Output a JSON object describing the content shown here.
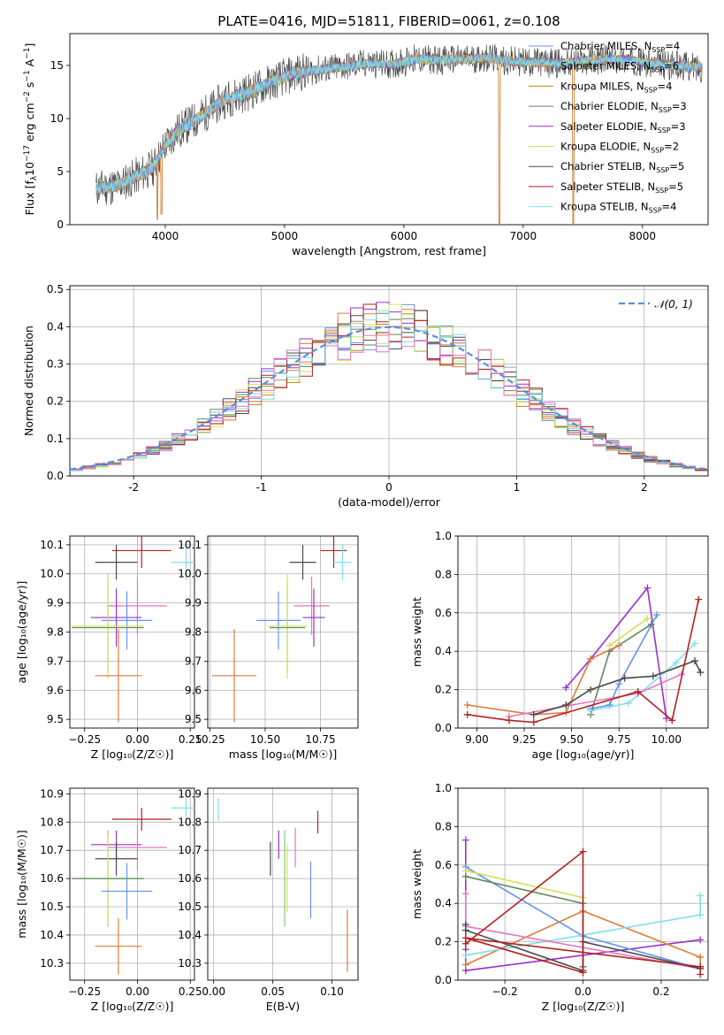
{
  "figure": {
    "title": "PLATE=0416, MJD=51811, FIBERID=0061, z=0.108",
    "colors": {
      "chabrier_miles": "#6495ed",
      "salpeter_miles": "#e07b39",
      "kroupa_miles": "#b8860b",
      "chabrier_elodie": "#5f8a5f",
      "salpeter_elodie": "#9932cc",
      "kroupa_elodie": "#d4e157",
      "chabrier_stelib": "#4a4a4a",
      "salpeter_stelib": "#b22222",
      "kroupa_stelib": "#80deea",
      "pink": "#e377c2",
      "green": "#7fc97f",
      "normal_dash": "#5b8fd6"
    }
  },
  "chart_data": [
    {
      "id": "spectrum",
      "type": "line",
      "xlabel": "wavelength [Angstrom, rest frame]",
      "ylabel": "Flux [f",
      "ylabel_parts": [
        "Flux [f",
        "λ",
        "10",
        "−17",
        " erg cm",
        "−2",
        " s",
        "−1",
        " A",
        "−1",
        "]"
      ],
      "xlim": [
        3200,
        8550
      ],
      "ylim": [
        0,
        18
      ],
      "xticks": [
        4000,
        5000,
        6000,
        7000,
        8000
      ],
      "yticks": [
        0,
        5,
        10,
        15
      ],
      "legend": [
        {
          "name": "Chabrier MILES, N",
          "sub": "SSP",
          "tail": "=4",
          "color_key": "chabrier_miles"
        },
        {
          "name": "Salpeter MILES, N",
          "sub": "SSP",
          "tail": "=6",
          "color_key": "salpeter_miles"
        },
        {
          "name": "Kroupa MILES, N",
          "sub": "SSP",
          "tail": "=4",
          "color_key": "kroupa_miles"
        },
        {
          "name": "Chabrier ELODIE, N",
          "sub": "SSP",
          "tail": "=3",
          "color_key": "chabrier_elodie"
        },
        {
          "name": "Salpeter ELODIE, N",
          "sub": "SSP",
          "tail": "=3",
          "color_key": "salpeter_elodie"
        },
        {
          "name": "Kroupa ELODIE, N",
          "sub": "SSP",
          "tail": "=2",
          "color_key": "kroupa_elodie"
        },
        {
          "name": "Chabrier STELIB, N",
          "sub": "SSP",
          "tail": "=5",
          "color_key": "chabrier_stelib"
        },
        {
          "name": "Salpeter STELIB, N",
          "sub": "SSP",
          "tail": "=5",
          "color_key": "salpeter_stelib"
        },
        {
          "name": "Kroupa STELIB, N",
          "sub": "SSP",
          "tail": "=4",
          "color_key": "kroupa_stelib"
        }
      ],
      "legend_position": "upper-right",
      "continuum": {
        "x": [
          3420,
          3600,
          3800,
          3900,
          4000,
          4100,
          4300,
          4500,
          4700,
          4900,
          5100,
          5300,
          5500,
          5700,
          5900,
          6100,
          6300,
          6500,
          6700,
          6900,
          7100,
          7300,
          7500,
          7700,
          7900,
          8100,
          8300,
          8500
        ],
        "y": [
          3.4,
          3.7,
          4.8,
          5.4,
          7.5,
          8.8,
          10.2,
          11.8,
          12.5,
          13.5,
          14.3,
          14.6,
          14.9,
          15.2,
          15.1,
          15.6,
          15.5,
          15.6,
          15.7,
          15.4,
          15.3,
          15.2,
          15.4,
          15.6,
          15.5,
          15.1,
          15.0,
          14.8
        ]
      },
      "dips": [
        {
          "x": 3933,
          "y": 0.5
        },
        {
          "x": 3968,
          "y": 1.0
        },
        {
          "x": 6800,
          "y": 0.0
        },
        {
          "x": 7420,
          "y": 0.0
        }
      ]
    },
    {
      "id": "residuals",
      "type": "step-histogram",
      "xlabel": "(data-model)/error",
      "ylabel": "Normed distribution",
      "xlim": [
        -2.5,
        2.5
      ],
      "ylim": [
        0,
        0.51
      ],
      "xticks": [
        -2,
        -1,
        0,
        1,
        2
      ],
      "yticks": [
        0.0,
        0.1,
        0.2,
        0.3,
        0.4,
        0.5
      ],
      "bin_width": 0.1,
      "legend": [
        {
          "name": "𝒩(0, 1)",
          "color_key": "normal_dash",
          "style": "dashed"
        }
      ],
      "legend_position": "upper-right",
      "normal": {
        "mu": 0,
        "sigma": 1
      }
    },
    {
      "id": "age_vs_Z",
      "type": "errorbar",
      "xlabel": "Z [log₁₀(Z/Z☉)]",
      "ylabel": "age  [log₁₀(age/yr)]",
      "xlim": [
        -0.32,
        0.27
      ],
      "ylim": [
        9.47,
        10.13
      ],
      "xticks": [
        -0.25,
        0.0,
        0.25
      ],
      "xtick_labels": [
        "−0.25",
        "0.00",
        "0.25"
      ],
      "yticks": [
        9.5,
        9.6,
        9.7,
        9.8,
        9.9,
        10.0,
        10.1
      ],
      "points": [
        {
          "x": 0.02,
          "xerr": 0.14,
          "y": 10.08,
          "yerr": 0.06,
          "c": "salpeter_stelib"
        },
        {
          "x": 0.23,
          "xerr": 0.07,
          "y": 10.04,
          "yerr": 0.06,
          "c": "kroupa_stelib"
        },
        {
          "x": -0.1,
          "xerr": 0.1,
          "y": 10.04,
          "yerr": 0.06,
          "c": "chabrier_stelib"
        },
        {
          "x": 0.0,
          "xerr": 0.14,
          "y": 9.89,
          "yerr": 0.1,
          "c": "pink"
        },
        {
          "x": -0.1,
          "xerr": 0.12,
          "y": 9.85,
          "yerr": 0.1,
          "c": "salpeter_elodie"
        },
        {
          "x": -0.05,
          "xerr": 0.12,
          "y": 9.84,
          "yerr": 0.1,
          "c": "chabrier_miles"
        },
        {
          "x": -0.14,
          "xerr": 0.17,
          "y": 9.82,
          "yerr": 0.16,
          "c": "green"
        },
        {
          "x": -0.14,
          "xerr": 0.17,
          "y": 9.82,
          "yerr": 0.18,
          "c": "kroupa_elodie"
        },
        {
          "x": -0.14,
          "xerr": 0.17,
          "y": 9.815,
          "yerr": 0.0,
          "c": "chabrier_elodie"
        },
        {
          "x": -0.09,
          "xerr": 0.11,
          "y": 9.65,
          "yerr": 0.16,
          "c": "salpeter_miles"
        }
      ]
    },
    {
      "id": "age_vs_mass",
      "type": "errorbar",
      "xlabel": "mass [log₁₀(M/M☉)]",
      "ylabel": "",
      "xlim": [
        10.24,
        10.92
      ],
      "ylim": [
        9.47,
        10.13
      ],
      "xticks": [
        10.25,
        10.5,
        10.75
      ],
      "xtick_labels": [
        "10.25",
        "10.50",
        "10.75"
      ],
      "yticks": [
        9.5,
        9.6,
        9.7,
        9.8,
        9.9,
        10.0,
        10.1
      ],
      "points": [
        {
          "x": 10.81,
          "xerr": 0.06,
          "y": 10.08,
          "yerr": 0.06,
          "c": "salpeter_stelib"
        },
        {
          "x": 10.85,
          "xerr": 0.04,
          "y": 10.04,
          "yerr": 0.06,
          "c": "kroupa_stelib"
        },
        {
          "x": 10.67,
          "xerr": 0.06,
          "y": 10.04,
          "yerr": 0.06,
          "c": "chabrier_stelib"
        },
        {
          "x": 10.71,
          "xerr": 0.08,
          "y": 9.89,
          "yerr": 0.1,
          "c": "pink"
        },
        {
          "x": 10.72,
          "xerr": 0.05,
          "y": 9.85,
          "yerr": 0.1,
          "c": "salpeter_elodie"
        },
        {
          "x": 10.56,
          "xerr": 0.1,
          "y": 9.84,
          "yerr": 0.1,
          "c": "chabrier_miles"
        },
        {
          "x": 10.6,
          "xerr": 0.08,
          "y": 9.82,
          "yerr": 0.16,
          "c": "green"
        },
        {
          "x": 10.6,
          "xerr": 0.09,
          "y": 9.82,
          "yerr": 0.18,
          "c": "kroupa_elodie"
        },
        {
          "x": 10.6,
          "xerr": 0.08,
          "y": 9.815,
          "yerr": 0.0,
          "c": "chabrier_elodie"
        },
        {
          "x": 10.36,
          "xerr": 0.1,
          "y": 9.65,
          "yerr": 0.16,
          "c": "salpeter_miles"
        }
      ]
    },
    {
      "id": "massweight_vs_age",
      "type": "line",
      "xlabel": "age  [log₁₀(age/yr)]",
      "ylabel": "mass weight",
      "xlim": [
        8.9,
        10.22
      ],
      "ylim": [
        0.0,
        1.0
      ],
      "xticks": [
        9.0,
        9.25,
        9.5,
        9.75,
        10.0
      ],
      "xtick_labels": [
        "9.00",
        "9.25",
        "9.50",
        "9.75",
        "10.00"
      ],
      "yticks": [
        0.0,
        0.2,
        0.4,
        0.6,
        0.8,
        1.0
      ],
      "ytick_labels": [
        "0.0",
        "0.2",
        "0.4",
        "0.6",
        "0.8",
        "1.0"
      ],
      "series": [
        {
          "c": "salpeter_elodie",
          "x": [
            9.47,
            9.6,
            9.9,
            10.0
          ],
          "y": [
            0.21,
            0.36,
            0.73,
            0.05
          ]
        },
        {
          "c": "chabrier_miles",
          "x": [
            9.6,
            9.7,
            9.75,
            9.95
          ],
          "y": [
            0.1,
            0.12,
            0.23,
            0.59
          ]
        },
        {
          "c": "chabrier_elodie",
          "x": [
            9.6,
            9.7,
            9.92
          ],
          "y": [
            0.07,
            0.4,
            0.54
          ]
        },
        {
          "c": "kroupa_elodie",
          "x": [
            9.7,
            9.9
          ],
          "y": [
            0.43,
            0.57
          ]
        },
        {
          "c": "salpeter_miles",
          "x": [
            8.95,
            9.3,
            9.47,
            9.6,
            9.75
          ],
          "y": [
            0.12,
            0.07,
            0.08,
            0.36,
            0.43
          ]
        },
        {
          "c": "kroupa_stelib",
          "x": [
            9.6,
            9.8,
            10.05,
            10.15
          ],
          "y": [
            0.09,
            0.13,
            0.34,
            0.44
          ]
        },
        {
          "c": "pink",
          "x": [
            9.17,
            9.5,
            9.85,
            10.08
          ],
          "y": [
            0.06,
            0.12,
            0.18,
            0.28
          ]
        },
        {
          "c": "chabrier_stelib",
          "x": [
            9.3,
            9.47,
            9.6,
            9.78,
            9.93,
            10.15,
            10.18
          ],
          "y": [
            0.07,
            0.12,
            0.2,
            0.26,
            0.27,
            0.35,
            0.29
          ]
        },
        {
          "c": "salpeter_stelib",
          "x": [
            8.95,
            9.17,
            9.3,
            9.85,
            10.03,
            10.17
          ],
          "y": [
            0.07,
            0.04,
            0.03,
            0.19,
            0.04,
            0.67
          ]
        }
      ]
    },
    {
      "id": "mass_vs_Z",
      "type": "errorbar",
      "xlabel": "Z [log₁₀(Z/Z☉)]",
      "ylabel": "mass [log₁₀(M/M☉)]",
      "xlim": [
        -0.32,
        0.27
      ],
      "ylim": [
        10.24,
        10.92
      ],
      "xticks": [
        -0.25,
        0.0,
        0.25
      ],
      "xtick_labels": [
        "−0.25",
        "0.00",
        "0.25"
      ],
      "yticks": [
        10.3,
        10.4,
        10.5,
        10.6,
        10.7,
        10.8,
        10.9
      ],
      "points": [
        {
          "x": 0.23,
          "xerr": 0.07,
          "y": 10.85,
          "yerr": 0.04,
          "c": "kroupa_stelib"
        },
        {
          "x": 0.02,
          "xerr": 0.14,
          "y": 10.81,
          "yerr": 0.04,
          "c": "salpeter_stelib"
        },
        {
          "x": -0.1,
          "xerr": 0.12,
          "y": 10.72,
          "yerr": 0.05,
          "c": "salpeter_elodie"
        },
        {
          "x": 0.0,
          "xerr": 0.14,
          "y": 10.71,
          "yerr": 0.08,
          "c": "pink"
        },
        {
          "x": -0.1,
          "xerr": 0.1,
          "y": 10.67,
          "yerr": 0.06,
          "c": "chabrier_stelib"
        },
        {
          "x": -0.14,
          "xerr": 0.17,
          "y": 10.6,
          "yerr": 0.17,
          "c": "green"
        },
        {
          "x": -0.14,
          "xerr": 0.17,
          "y": 10.6,
          "yerr": 0.16,
          "c": "kroupa_elodie"
        },
        {
          "x": -0.14,
          "xerr": 0.17,
          "y": 10.6,
          "yerr": 0.0,
          "c": "chabrier_elodie"
        },
        {
          "x": -0.05,
          "xerr": 0.12,
          "y": 10.555,
          "yerr": 0.1,
          "c": "chabrier_miles"
        },
        {
          "x": -0.09,
          "xerr": 0.11,
          "y": 10.36,
          "yerr": 0.1,
          "c": "salpeter_miles"
        }
      ]
    },
    {
      "id": "mass_vs_ebv",
      "type": "errorbar",
      "xlabel": "E(B-V)",
      "ylabel": "",
      "xlim": [
        -0.005,
        0.122
      ],
      "ylim": [
        10.24,
        10.92
      ],
      "xticks": [
        0.0,
        0.05,
        0.1
      ],
      "xtick_labels": [
        "0.00",
        "0.05",
        "0.10"
      ],
      "yticks": [
        10.3,
        10.4,
        10.5,
        10.6,
        10.7,
        10.8,
        10.9
      ],
      "points": [
        {
          "x": 0.004,
          "xerr": 0.0,
          "y": 10.845,
          "yerr": 0.04,
          "c": "kroupa_stelib"
        },
        {
          "x": 0.088,
          "xerr": 0.0,
          "y": 10.8,
          "yerr": 0.04,
          "c": "salpeter_stelib"
        },
        {
          "x": 0.055,
          "xerr": 0.0,
          "y": 10.72,
          "yerr": 0.05,
          "c": "salpeter_elodie"
        },
        {
          "x": 0.069,
          "xerr": 0.0,
          "y": 10.71,
          "yerr": 0.07,
          "c": "pink"
        },
        {
          "x": 0.048,
          "xerr": 0.0,
          "y": 10.67,
          "yerr": 0.06,
          "c": "chabrier_stelib"
        },
        {
          "x": 0.06,
          "xerr": 0.0,
          "y": 10.6,
          "yerr": 0.17,
          "c": "green"
        },
        {
          "x": 0.062,
          "xerr": 0.0,
          "y": 10.6,
          "yerr": 0.12,
          "c": "kroupa_elodie"
        },
        {
          "x": 0.082,
          "xerr": 0.0,
          "y": 10.56,
          "yerr": 0.1,
          "c": "chabrier_miles"
        },
        {
          "x": 0.113,
          "xerr": 0.0,
          "y": 10.38,
          "yerr": 0.11,
          "c": "salpeter_miles"
        }
      ]
    },
    {
      "id": "massweight_vs_Z",
      "type": "line",
      "xlabel": "Z [log₁₀(Z/Z☉)]",
      "ylabel": "mass weight",
      "xlim": [
        -0.32,
        0.32
      ],
      "ylim": [
        0.0,
        1.0
      ],
      "xticks": [
        -0.2,
        0.0,
        0.2
      ],
      "xtick_labels": [
        "−0.2",
        "0.0",
        "0.2"
      ],
      "yticks": [
        0.0,
        0.2,
        0.4,
        0.6,
        0.8,
        1.0
      ],
      "ytick_labels": [
        "0.0",
        "0.2",
        "0.4",
        "0.6",
        "0.8",
        "1.0"
      ],
      "series": [
        {
          "c": "salpeter_elodie",
          "x": [
            -0.3,
            -0.3,
            -0.3,
            0.3
          ],
          "y": [
            0.73,
            0.16,
            0.05,
            0.21
          ]
        },
        {
          "c": "chabrier_miles",
          "x": [
            -0.3,
            0.0,
            0.3
          ],
          "y": [
            0.59,
            0.23,
            0.06
          ]
        },
        {
          "c": "kroupa_elodie",
          "x": [
            -0.3,
            0.0
          ],
          "y": [
            0.57,
            0.43
          ]
        },
        {
          "c": "chabrier_elodie",
          "x": [
            -0.3,
            0.0,
            0.0
          ],
          "y": [
            0.54,
            0.4,
            0.07
          ]
        },
        {
          "c": "salpeter_miles",
          "x": [
            -0.3,
            0.0,
            0.3,
            0.3
          ],
          "y": [
            0.08,
            0.36,
            0.12,
            0.07
          ]
        },
        {
          "c": "kroupa_stelib",
          "x": [
            -0.3,
            0.3,
            0.3
          ],
          "y": [
            0.13,
            0.34,
            0.44
          ]
        },
        {
          "c": "pink",
          "x": [
            -0.3,
            -0.3,
            0.3
          ],
          "y": [
            0.45,
            0.28,
            0.06
          ]
        },
        {
          "c": "chabrier_stelib",
          "x": [
            -0.3,
            -0.3,
            0.0,
            0.0,
            0.3
          ],
          "y": [
            0.29,
            0.26,
            0.05,
            0.2,
            0.06
          ]
        },
        {
          "c": "salpeter_stelib",
          "x": [
            -0.3,
            0.0,
            0.0,
            -0.3,
            0.3,
            0.3
          ],
          "y": [
            0.19,
            0.67,
            0.04,
            0.22,
            0.07,
            0.03
          ]
        }
      ]
    }
  ]
}
